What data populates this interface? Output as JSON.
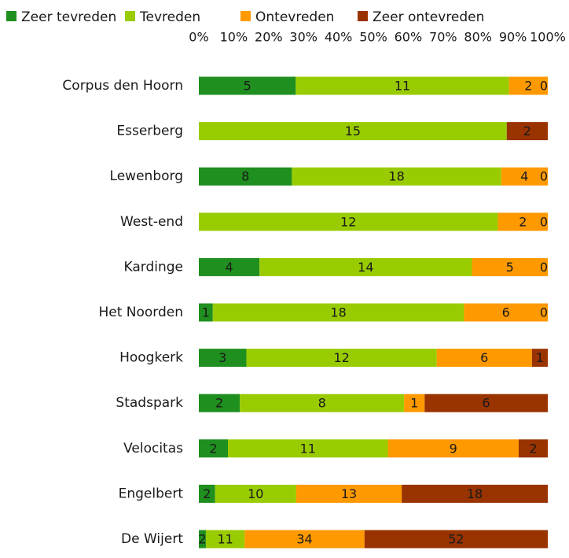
{
  "chart_data": {
    "type": "bar",
    "orientation": "horizontal",
    "stacking": "percent",
    "categories": [
      "Corpus den Hoorn",
      "Esserberg",
      "Lewenborg",
      "West-end",
      "Kardinge",
      "Het Noorden",
      "Hoogkerk",
      "Stadspark",
      "Velocitas",
      "Engelbert",
      "De Wijert"
    ],
    "series": [
      {
        "name": "Zeer tevreden",
        "color": "#1f8f1f",
        "label_color": "#ffffff",
        "values": [
          5,
          0,
          8,
          0,
          4,
          1,
          3,
          2,
          2,
          2,
          2
        ]
      },
      {
        "name": "Tevreden",
        "color": "#99cc00",
        "label_color": "#1a1a1a",
        "values": [
          11,
          15,
          18,
          12,
          14,
          18,
          12,
          8,
          11,
          10,
          11
        ]
      },
      {
        "name": "Ontevreden",
        "color": "#ff9900",
        "label_color": "#1a1a1a",
        "values": [
          2,
          0,
          4,
          2,
          5,
          6,
          6,
          1,
          9,
          13,
          34
        ]
      },
      {
        "name": "Zeer ontevreden",
        "color": "#993300",
        "label_color": "#ffffff",
        "values": [
          0,
          2,
          0,
          0,
          0,
          0,
          1,
          6,
          2,
          18,
          52
        ]
      }
    ],
    "xlim": [
      0,
      100
    ],
    "xticks": [
      {
        "value": 0,
        "label": "0%"
      },
      {
        "value": 10,
        "label": "10%"
      },
      {
        "value": 20,
        "label": "20%"
      },
      {
        "value": 30,
        "label": "30%"
      },
      {
        "value": 40,
        "label": "40%"
      },
      {
        "value": 50,
        "label": "50%"
      },
      {
        "value": 60,
        "label": "60%"
      },
      {
        "value": 70,
        "label": "70%"
      },
      {
        "value": 80,
        "label": "80%"
      },
      {
        "value": 90,
        "label": "90%"
      },
      {
        "value": 100,
        "label": "100%"
      }
    ],
    "legend": "top"
  }
}
